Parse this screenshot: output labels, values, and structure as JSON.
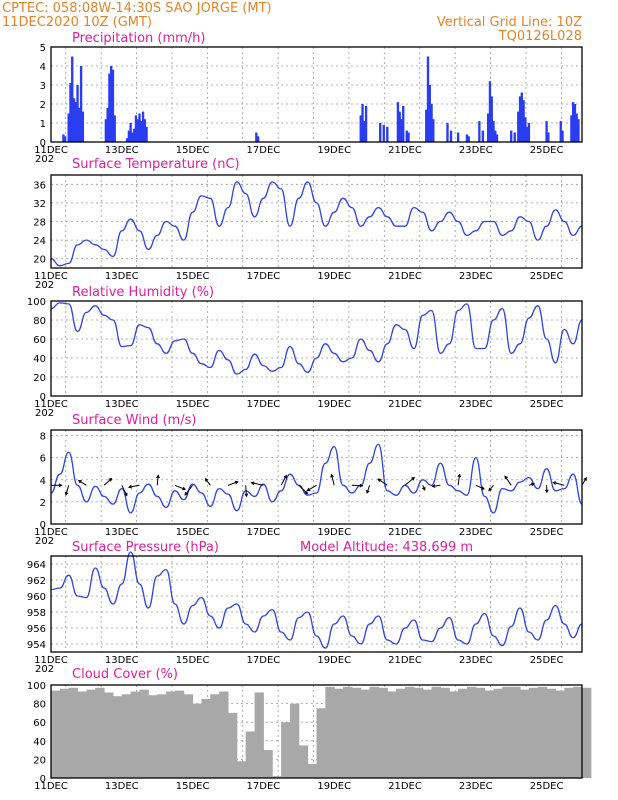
{
  "header": {
    "line1_left": "CPTEC:  058:08W-14:30S  SAO JORGE (MT)",
    "line2_left": "11DEC2020 10Z (GMT)",
    "line1_right": "Vertical Grid Line: 10Z",
    "line2_right": "TQ0126L028"
  },
  "x_axis": {
    "tick_labels": [
      "11DEC",
      "13DEC",
      "15DEC",
      "17DEC",
      "19DEC",
      "21DEC",
      "23DEC",
      "25DEC"
    ],
    "year_stub": "202",
    "range_days": [
      0,
      15
    ]
  },
  "colors": {
    "header": "#e0862a",
    "panel_title": "#e0209b",
    "series": "#3046e0",
    "cloud": "#a8a8a8"
  },
  "panels": {
    "precip": {
      "title": "Precipitation (mm/h)",
      "y_ticks": [
        "5",
        "4",
        "3",
        "2",
        "1",
        "0"
      ]
    },
    "temp": {
      "title": "Surface Temperature (nC)",
      "y_ticks": [
        "36",
        "32",
        "28",
        "24",
        "20"
      ]
    },
    "rh": {
      "title": "Relative Humidity (%)",
      "y_ticks": [
        "100",
        "80",
        "60",
        "40",
        "20",
        "0"
      ]
    },
    "wind": {
      "title": "Surface Wind (m/s)",
      "y_ticks": [
        "8",
        "6",
        "4",
        "2",
        "0"
      ]
    },
    "pressure": {
      "title": "Surface Pressure (hPa)",
      "extra": "Model Altitude: 438.699 m",
      "y_ticks": [
        "964",
        "962",
        "960",
        "958",
        "956",
        "954"
      ]
    },
    "cloud": {
      "title": "Cloud Cover (%)",
      "y_ticks": [
        "100",
        "80",
        "60",
        "40",
        "20",
        "0"
      ]
    }
  },
  "chart_data": [
    {
      "type": "bar",
      "title": "Precipitation (mm/h)",
      "ylim": [
        0,
        5
      ],
      "x_unit": "days since 11DEC 00Z",
      "bars": [
        [
          0.35,
          0.4
        ],
        [
          0.4,
          0.3
        ],
        [
          0.5,
          1.5
        ],
        [
          0.55,
          3.1
        ],
        [
          0.6,
          4.5
        ],
        [
          0.65,
          2.3
        ],
        [
          0.7,
          2.1
        ],
        [
          0.75,
          3.0
        ],
        [
          0.8,
          1.8
        ],
        [
          0.85,
          4.0
        ],
        [
          0.9,
          1.6
        ],
        [
          1.55,
          1.2
        ],
        [
          1.6,
          1.8
        ],
        [
          1.65,
          3.6
        ],
        [
          1.7,
          4.0
        ],
        [
          1.75,
          3.8
        ],
        [
          1.8,
          1.4
        ],
        [
          2.15,
          0.2
        ],
        [
          2.2,
          0.6
        ],
        [
          2.25,
          1.0
        ],
        [
          2.3,
          0.5
        ],
        [
          2.35,
          0.7
        ],
        [
          2.4,
          1.4
        ],
        [
          2.45,
          1.2
        ],
        [
          2.5,
          1.5
        ],
        [
          2.55,
          1.1
        ],
        [
          2.6,
          1.6
        ],
        [
          2.65,
          1.2
        ],
        [
          2.7,
          0.8
        ],
        [
          5.8,
          0.5
        ],
        [
          5.85,
          0.3
        ],
        [
          8.75,
          1.4
        ],
        [
          8.8,
          2.0
        ],
        [
          8.85,
          1.1
        ],
        [
          8.9,
          1.9
        ],
        [
          9.3,
          1.0
        ],
        [
          9.4,
          0.9
        ],
        [
          9.5,
          0.8
        ],
        [
          9.8,
          2.1
        ],
        [
          9.85,
          1.6
        ],
        [
          9.9,
          1.2
        ],
        [
          9.95,
          1.9
        ],
        [
          10.05,
          0.6
        ],
        [
          10.1,
          0.5
        ],
        [
          10.6,
          1.7
        ],
        [
          10.65,
          4.5
        ],
        [
          10.7,
          3.0
        ],
        [
          10.75,
          2.0
        ],
        [
          10.8,
          1.2
        ],
        [
          11.2,
          1.0
        ],
        [
          11.3,
          0.6
        ],
        [
          11.5,
          0.5
        ],
        [
          11.75,
          0.4
        ],
        [
          11.8,
          0.3
        ],
        [
          12.1,
          1.1
        ],
        [
          12.2,
          0.6
        ],
        [
          12.35,
          1.5
        ],
        [
          12.4,
          3.2
        ],
        [
          12.45,
          2.4
        ],
        [
          12.5,
          1.1
        ],
        [
          12.55,
          0.6
        ],
        [
          12.6,
          0.4
        ],
        [
          13.0,
          0.6
        ],
        [
          13.1,
          0.5
        ],
        [
          13.2,
          1.6
        ],
        [
          13.25,
          2.4
        ],
        [
          13.3,
          2.6
        ],
        [
          13.35,
          2.2
        ],
        [
          13.4,
          1.3
        ],
        [
          13.45,
          0.8
        ],
        [
          13.5,
          1.0
        ],
        [
          14.0,
          1.1
        ],
        [
          14.05,
          0.5
        ],
        [
          14.4,
          1.1
        ],
        [
          14.45,
          0.6
        ],
        [
          14.7,
          1.4
        ],
        [
          14.75,
          2.1
        ],
        [
          14.8,
          2.0
        ],
        [
          14.85,
          1.5
        ],
        [
          14.9,
          1.2
        ]
      ]
    },
    {
      "type": "line",
      "title": "Surface Temperature (nC)",
      "ylim": [
        18,
        38
      ],
      "x": [
        0,
        0.25,
        0.5,
        0.75,
        1,
        1.25,
        1.5,
        1.75,
        2,
        2.25,
        2.5,
        2.75,
        3,
        3.25,
        3.5,
        3.75,
        4,
        4.25,
        4.5,
        4.75,
        5,
        5.25,
        5.5,
        5.75,
        6,
        6.25,
        6.5,
        6.75,
        7,
        7.25,
        7.5,
        7.75,
        8,
        8.25,
        8.5,
        8.75,
        9,
        9.25,
        9.5,
        9.75,
        10,
        10.25,
        10.5,
        10.75,
        11,
        11.25,
        11.5,
        11.75,
        12,
        12.25,
        12.5,
        12.75,
        13,
        13.25,
        13.5,
        13.75,
        14,
        14.25,
        14.5,
        14.75,
        15
      ],
      "values": [
        20,
        18.5,
        19,
        23,
        24,
        23,
        22,
        20.5,
        26,
        28.5,
        26,
        22,
        25,
        28,
        27,
        24,
        30,
        33.5,
        33,
        27,
        31,
        36.5,
        34,
        29,
        33,
        36.5,
        35,
        27,
        33,
        36.5,
        32,
        27,
        30,
        33,
        31,
        27,
        29,
        31,
        29,
        27,
        27,
        31,
        30,
        26,
        28,
        30,
        28,
        25,
        26,
        28,
        28,
        25,
        26,
        29,
        28,
        24,
        27,
        30.5,
        28,
        25,
        27
      ]
    },
    {
      "type": "line",
      "title": "Relative Humidity (%)",
      "ylim": [
        0,
        100
      ],
      "x": [
        0,
        0.25,
        0.5,
        0.75,
        1,
        1.25,
        1.5,
        1.75,
        2,
        2.25,
        2.5,
        2.75,
        3,
        3.25,
        3.5,
        3.75,
        4,
        4.25,
        4.5,
        4.75,
        5,
        5.25,
        5.5,
        5.75,
        6,
        6.25,
        6.5,
        6.75,
        7,
        7.25,
        7.5,
        7.75,
        8,
        8.25,
        8.5,
        8.75,
        9,
        9.25,
        9.5,
        9.75,
        10,
        10.25,
        10.5,
        10.75,
        11,
        11.25,
        11.5,
        11.75,
        12,
        12.25,
        12.5,
        12.75,
        13,
        13.25,
        13.5,
        13.75,
        14,
        14.25,
        14.5,
        14.75,
        15
      ],
      "values": [
        92,
        98,
        97,
        68,
        88,
        95,
        85,
        80,
        52,
        53,
        75,
        72,
        55,
        45,
        58,
        60,
        45,
        34,
        30,
        48,
        38,
        23,
        28,
        44,
        32,
        26,
        30,
        52,
        34,
        25,
        40,
        55,
        45,
        36,
        40,
        60,
        48,
        36,
        55,
        75,
        70,
        50,
        85,
        90,
        45,
        55,
        90,
        97,
        50,
        50,
        80,
        92,
        45,
        55,
        82,
        95,
        60,
        35,
        70,
        55,
        80
      ]
    },
    {
      "type": "line",
      "title": "Surface Wind (m/s)",
      "ylim": [
        0,
        8.5
      ],
      "x": [
        0,
        0.25,
        0.5,
        0.75,
        1,
        1.25,
        1.5,
        1.75,
        2,
        2.25,
        2.5,
        2.75,
        3,
        3.25,
        3.5,
        3.75,
        4,
        4.25,
        4.5,
        4.75,
        5,
        5.25,
        5.5,
        5.75,
        6,
        6.25,
        6.5,
        6.75,
        7,
        7.25,
        7.5,
        7.75,
        8,
        8.25,
        8.5,
        8.75,
        9,
        9.25,
        9.5,
        9.75,
        10,
        10.25,
        10.5,
        10.75,
        11,
        11.25,
        11.5,
        11.75,
        12,
        12.25,
        12.5,
        12.75,
        13,
        13.25,
        13.5,
        13.75,
        14,
        14.25,
        14.5,
        14.75,
        15
      ],
      "values": [
        2.8,
        4.5,
        6.5,
        3.5,
        2.0,
        3.4,
        2.5,
        1.8,
        3.2,
        1.0,
        2.8,
        3.6,
        2.5,
        1.5,
        3.0,
        2.2,
        3.6,
        2.8,
        1.6,
        3.2,
        2.7,
        1.2,
        3.0,
        2.5,
        3.6,
        2.0,
        3.0,
        4.5,
        3.5,
        2.6,
        2.8,
        5.5,
        7.0,
        3.5,
        2.8,
        3.5,
        5.5,
        7.2,
        3.0,
        2.6,
        3.5,
        2.8,
        4.0,
        3.5,
        5.5,
        3.5,
        3.0,
        2.6,
        6.0,
        2.5,
        1.0,
        3.2,
        3.0,
        3.8,
        4.2,
        3.2,
        5.0,
        3.0,
        3.2,
        4.5,
        1.8
      ]
    },
    {
      "type": "line",
      "title": "Surface Pressure (hPa)",
      "ylim": [
        953,
        965
      ],
      "x": [
        0,
        0.25,
        0.5,
        0.75,
        1,
        1.25,
        1.5,
        1.75,
        2,
        2.25,
        2.5,
        2.75,
        3,
        3.25,
        3.5,
        3.75,
        4,
        4.25,
        4.5,
        4.75,
        5,
        5.25,
        5.5,
        5.75,
        6,
        6.25,
        6.5,
        6.75,
        7,
        7.25,
        7.5,
        7.75,
        8,
        8.25,
        8.5,
        8.75,
        9,
        9.25,
        9.5,
        9.75,
        10,
        10.25,
        10.5,
        10.75,
        11,
        11.25,
        11.5,
        11.75,
        12,
        12.25,
        12.5,
        12.75,
        13,
        13.25,
        13.5,
        13.75,
        14,
        14.25,
        14.5,
        14.75,
        15
      ],
      "values": [
        960.8,
        961.0,
        962.6,
        960.0,
        959.8,
        963.5,
        961.0,
        959.0,
        961.5,
        965.5,
        961.5,
        958.5,
        962.5,
        963.3,
        959.0,
        956.5,
        958.8,
        959.8,
        957.5,
        956.0,
        958.5,
        959.0,
        956.5,
        955.5,
        957.5,
        958.3,
        955.5,
        954.5,
        957.3,
        958.0,
        955.0,
        953.5,
        956.5,
        957.5,
        955.0,
        954.0,
        956.5,
        957.5,
        954.5,
        954.0,
        956.0,
        957.0,
        954.5,
        954.3,
        956.0,
        957.3,
        954.5,
        954.0,
        956.5,
        957.8,
        955.0,
        953.8,
        956.2,
        958.5,
        955.5,
        954.5,
        957.0,
        958.8,
        956.5,
        954.8,
        956.5
      ]
    },
    {
      "type": "area",
      "title": "Cloud Cover (%)",
      "ylim": [
        0,
        100
      ],
      "x": [
        0,
        0.25,
        0.5,
        0.75,
        1,
        1.25,
        1.5,
        1.75,
        2,
        2.25,
        2.5,
        2.75,
        3,
        3.25,
        3.5,
        3.75,
        4,
        4.25,
        4.5,
        4.75,
        5,
        5.25,
        5.5,
        5.75,
        6,
        6.25,
        6.5,
        6.75,
        7,
        7.25,
        7.5,
        7.75,
        8,
        8.25,
        8.5,
        8.75,
        9,
        9.25,
        9.5,
        9.75,
        10,
        10.25,
        10.5,
        10.75,
        11,
        11.25,
        11.5,
        11.75,
        12,
        12.25,
        12.5,
        12.75,
        13,
        13.25,
        13.5,
        13.75,
        14,
        14.25,
        14.5,
        14.75,
        15
      ],
      "values": [
        94,
        96,
        97,
        93,
        95,
        97,
        92,
        88,
        90,
        93,
        95,
        89,
        90,
        93,
        94,
        90,
        80,
        85,
        90,
        93,
        70,
        18,
        50,
        92,
        30,
        2,
        60,
        80,
        35,
        15,
        75,
        98,
        96,
        98,
        97,
        95,
        98,
        97,
        93,
        96,
        98,
        97,
        95,
        98,
        97,
        93,
        96,
        98,
        97,
        94,
        96,
        98,
        98,
        95,
        97,
        98,
        96,
        94,
        97,
        98,
        97
      ]
    }
  ]
}
